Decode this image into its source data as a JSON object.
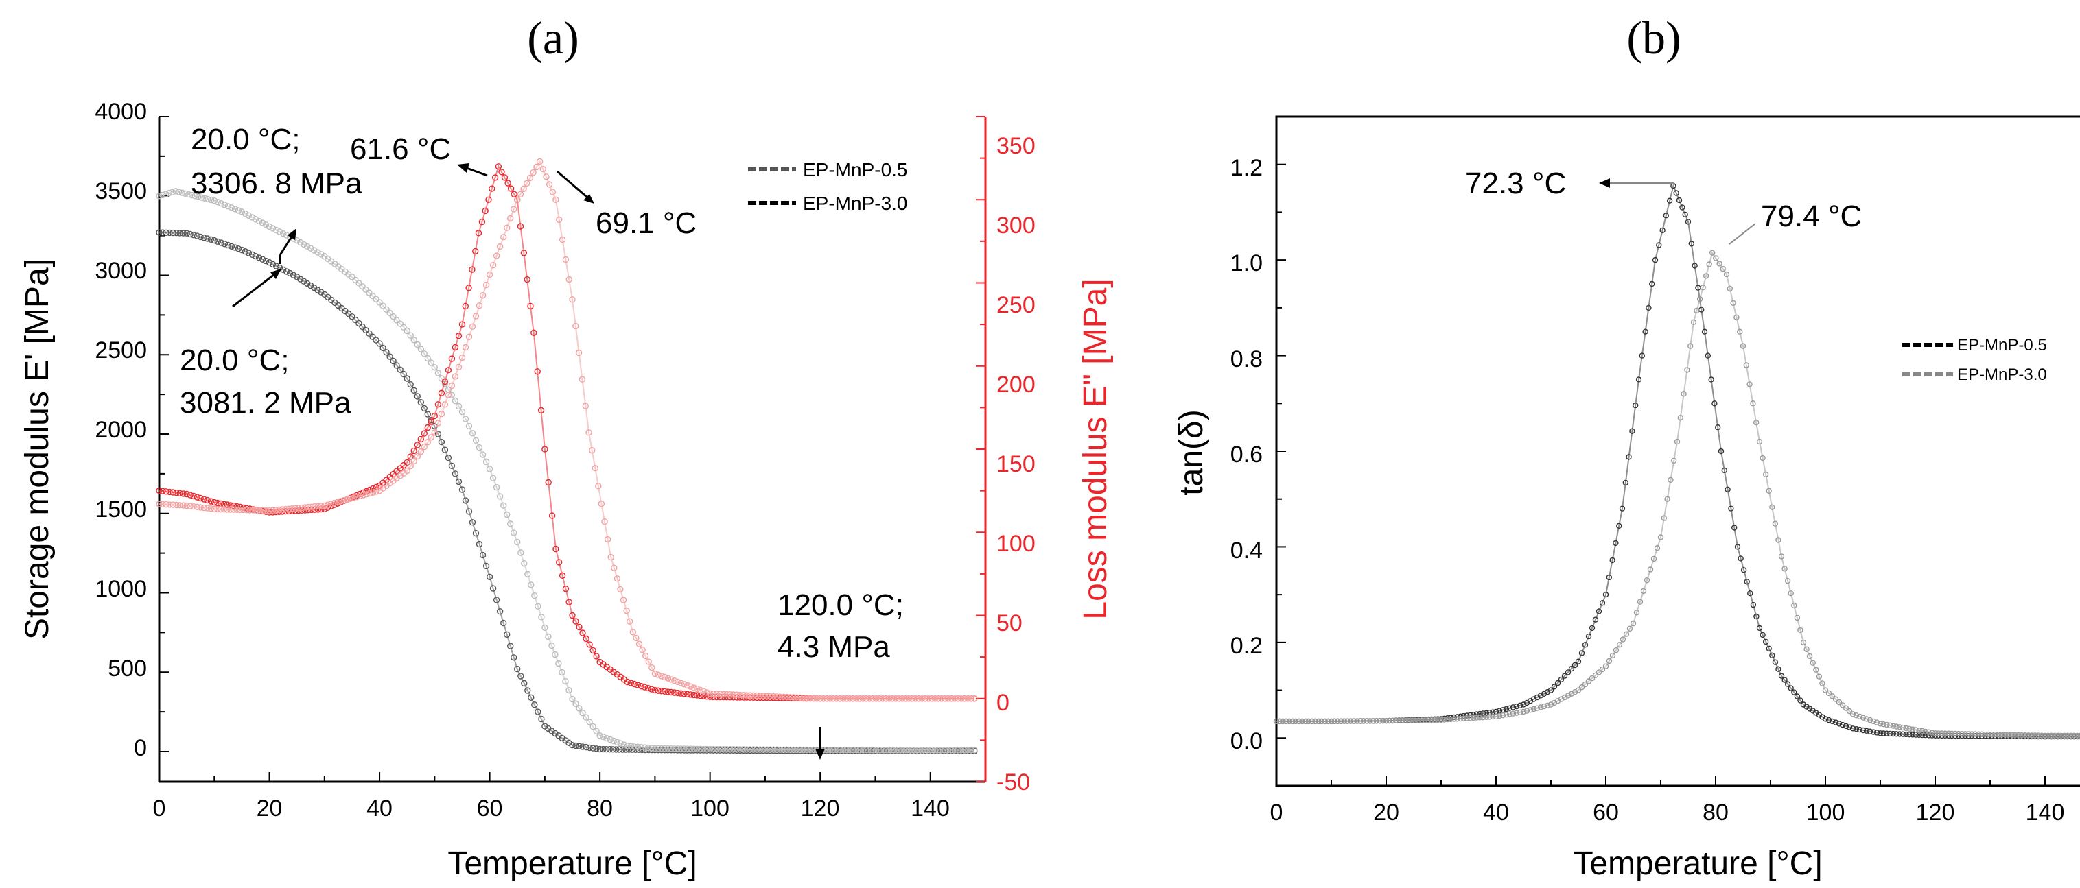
{
  "chart_data": [
    {
      "panel_label": "(a)",
      "type": "line",
      "xlabel": "Temperature [°C]",
      "ylabel_left": "Storage modulus E' [MPa]",
      "ylabel_right": "Loss modulus E\" [MPa]",
      "xlim": [
        0,
        150
      ],
      "ylim_left": [
        0,
        4000
      ],
      "ylim_right": [
        -50,
        350
      ],
      "xticks": [
        "0",
        "20",
        "40",
        "60",
        "80",
        "100",
        "120",
        "140"
      ],
      "yticks_left": [
        "0",
        "500",
        "1000",
        "1500",
        "2000",
        "2500",
        "3000",
        "3500",
        "4000"
      ],
      "yticks_right": [
        "-50",
        "0",
        "50",
        "100",
        "150",
        "200",
        "250",
        "300",
        "350"
      ],
      "legend": [
        "EP-MnP-0.5",
        "EP-MnP-3.0"
      ],
      "series": [
        {
          "name": "EP-MnP-0.5 storage modulus",
          "axis": "left",
          "color": "#555555",
          "x": [
            0,
            5,
            10,
            15,
            20,
            25,
            30,
            35,
            40,
            45,
            50,
            55,
            60,
            65,
            70,
            75,
            80,
            90,
            100,
            120,
            140,
            148
          ],
          "y": [
            3270,
            3265,
            3220,
            3160,
            3081,
            2990,
            2880,
            2740,
            2570,
            2350,
            2050,
            1650,
            1100,
            520,
            160,
            40,
            15,
            10,
            8,
            4.3,
            3,
            3
          ]
        },
        {
          "name": "EP-MnP-3.0 storage modulus",
          "axis": "left",
          "color": "#bbbbbb",
          "x": [
            0,
            3,
            10,
            15,
            20,
            25,
            30,
            35,
            40,
            45,
            50,
            55,
            60,
            65,
            70,
            75,
            80,
            85,
            90,
            100,
            120,
            148
          ],
          "y": [
            3500,
            3530,
            3470,
            3400,
            3307,
            3220,
            3120,
            2990,
            2830,
            2650,
            2420,
            2140,
            1780,
            1320,
            780,
            330,
            100,
            35,
            20,
            15,
            10,
            10
          ]
        },
        {
          "name": "EP-MnP-0.5 loss modulus",
          "axis": "right",
          "color": "#e8262b",
          "x": [
            0,
            5,
            10,
            20,
            30,
            40,
            45,
            50,
            55,
            58,
            61.6,
            65,
            68,
            70,
            72,
            75,
            80,
            85,
            90,
            100,
            120,
            148
          ],
          "y": [
            125,
            123,
            118,
            112,
            114,
            128,
            142,
            170,
            225,
            280,
            320,
            300,
            220,
            150,
            90,
            50,
            22,
            10,
            5,
            1,
            0,
            0
          ]
        },
        {
          "name": "EP-MnP-3.0 loss modulus",
          "axis": "right",
          "color": "#f2a0a0",
          "x": [
            0,
            5,
            10,
            20,
            30,
            40,
            45,
            50,
            55,
            60,
            65,
            69.1,
            72,
            75,
            78,
            82,
            86,
            90,
            100,
            120,
            148
          ],
          "y": [
            117,
            116,
            114,
            113,
            116,
            125,
            137,
            160,
            205,
            255,
            300,
            323,
            300,
            240,
            160,
            85,
            40,
            15,
            3,
            0,
            0
          ]
        }
      ],
      "annotations": [
        {
          "line1": "20.0 °C;",
          "line2": "3306. 8 MPa"
        },
        {
          "line1": "20.0 °C;",
          "line2": "3081. 2 MPa"
        },
        {
          "text": "61.6 °C"
        },
        {
          "text": "69.1 °C"
        },
        {
          "line1": "120.0 °C;",
          "line2": "4.3 MPa"
        }
      ]
    },
    {
      "panel_label": "(b)",
      "type": "line",
      "xlabel": "Temperature [°C]",
      "ylabel": "tan(δ)",
      "xlim": [
        0,
        150
      ],
      "ylim": [
        -0.1,
        1.3
      ],
      "xticks": [
        "0",
        "20",
        "40",
        "60",
        "80",
        "100",
        "120",
        "140"
      ],
      "yticks": [
        "0.0",
        "0.2",
        "0.4",
        "0.6",
        "0.8",
        "1.0",
        "1.2"
      ],
      "legend": [
        "EP-MnP-0.5",
        "EP-MnP-3.0"
      ],
      "series": [
        {
          "name": "EP-MnP-0.5",
          "color": "#333333",
          "x": [
            0,
            10,
            20,
            30,
            40,
            45,
            50,
            55,
            60,
            63,
            66,
            69,
            72.3,
            75,
            78,
            81,
            84,
            88,
            92,
            96,
            100,
            105,
            110,
            120,
            140,
            150
          ],
          "y": [
            0.035,
            0.035,
            0.036,
            0.04,
            0.055,
            0.07,
            0.1,
            0.16,
            0.3,
            0.48,
            0.75,
            1.0,
            1.155,
            1.08,
            0.85,
            0.6,
            0.4,
            0.23,
            0.13,
            0.07,
            0.04,
            0.02,
            0.01,
            0.005,
            0.003,
            0.003
          ]
        },
        {
          "name": "EP-MnP-3.0",
          "color": "#999999",
          "x": [
            0,
            10,
            20,
            30,
            40,
            45,
            50,
            55,
            60,
            65,
            70,
            73,
            76,
            79.4,
            82,
            85,
            88,
            92,
            96,
            100,
            105,
            110,
            120,
            140,
            150
          ],
          "y": [
            0.035,
            0.035,
            0.036,
            0.038,
            0.045,
            0.055,
            0.07,
            0.1,
            0.15,
            0.24,
            0.42,
            0.62,
            0.87,
            1.015,
            0.97,
            0.82,
            0.62,
            0.38,
            0.2,
            0.1,
            0.05,
            0.03,
            0.01,
            0.005,
            0.005
          ]
        }
      ],
      "annotations": [
        {
          "text": "72.3 °C"
        },
        {
          "text": "79.4 °C"
        }
      ]
    }
  ]
}
